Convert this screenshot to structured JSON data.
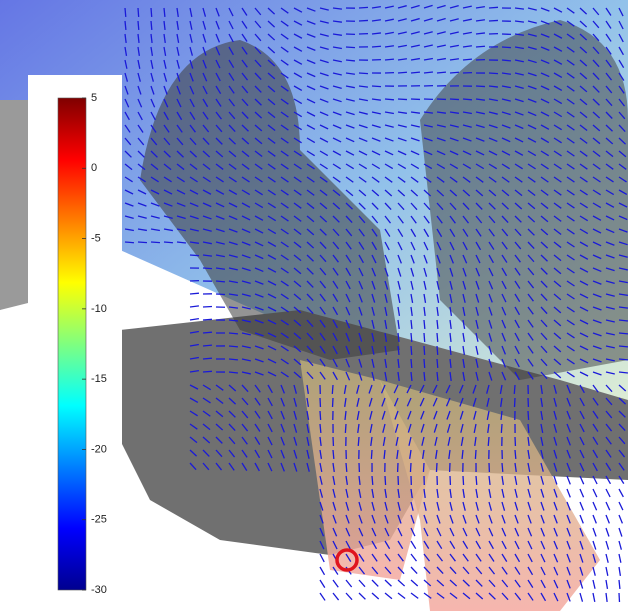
{
  "chart_data": {
    "type": "colorbar",
    "colormap": "jet",
    "ylim": [
      -30,
      5
    ],
    "yticks": [
      5,
      0,
      -5,
      -10,
      -15,
      -20,
      -25,
      -30
    ]
  }
}
